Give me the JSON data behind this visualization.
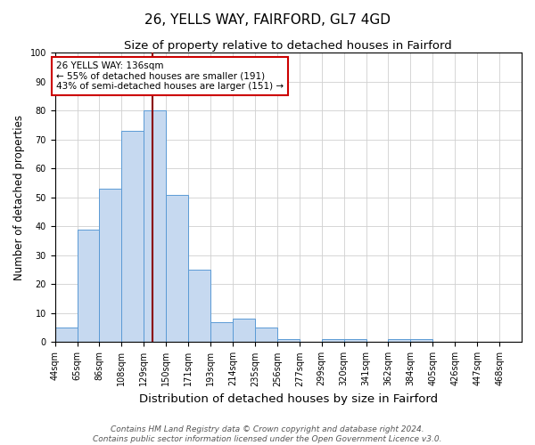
{
  "title1": "26, YELLS WAY, FAIRFORD, GL7 4GD",
  "title2": "Size of property relative to detached houses in Fairford",
  "xlabel": "Distribution of detached houses by size in Fairford",
  "ylabel": "Number of detached properties",
  "footer1": "Contains HM Land Registry data © Crown copyright and database right 2024.",
  "footer2": "Contains public sector information licensed under the Open Government Licence v3.0.",
  "categories": [
    "44sqm",
    "65sqm",
    "86sqm",
    "108sqm",
    "129sqm",
    "150sqm",
    "171sqm",
    "193sqm",
    "214sqm",
    "235sqm",
    "256sqm",
    "277sqm",
    "299sqm",
    "320sqm",
    "341sqm",
    "362sqm",
    "384sqm",
    "405sqm",
    "426sqm",
    "447sqm",
    "468sqm"
  ],
  "values": [
    5,
    39,
    53,
    73,
    80,
    51,
    25,
    7,
    8,
    5,
    1,
    0,
    1,
    1,
    0,
    1,
    1,
    0,
    0,
    0,
    0
  ],
  "bar_color": "#c6d9f0",
  "bar_edge_color": "#5b9bd5",
  "property_line_color": "#8B0000",
  "annotation_text": "26 YELLS WAY: 136sqm\n← 55% of detached houses are smaller (191)\n43% of semi-detached houses are larger (151) →",
  "annotation_box_color": "white",
  "annotation_box_edge_color": "#cc0000",
  "ylim": [
    0,
    100
  ],
  "bin_width": 21,
  "property_line_x": 136,
  "title1_fontsize": 11,
  "title2_fontsize": 9.5,
  "xlabel_fontsize": 9.5,
  "ylabel_fontsize": 8.5,
  "tick_fontsize": 7,
  "footer_fontsize": 6.5,
  "annotation_fontsize": 7.5
}
